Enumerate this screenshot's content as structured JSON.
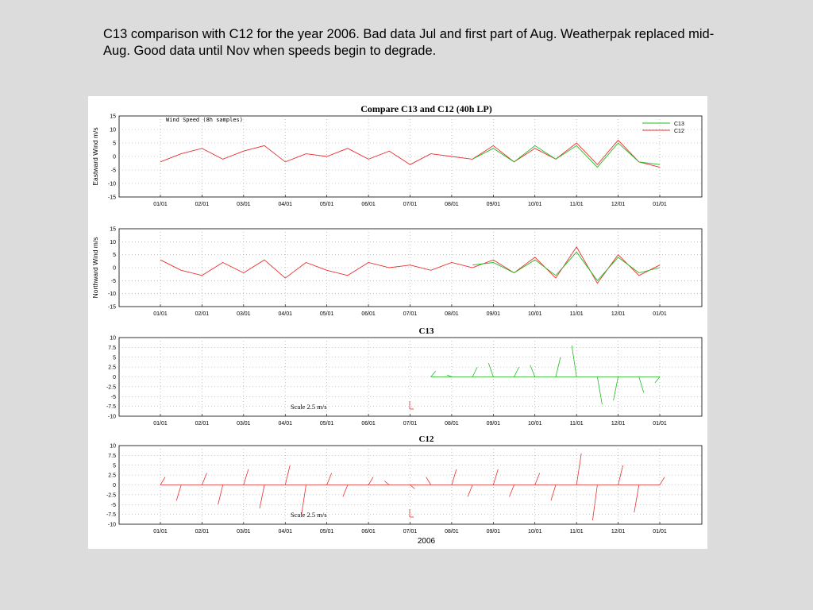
{
  "caption": "C13 comparison with C12 for the year 2006. Bad data Jul and first part of Aug. Weatherpak replaced mid-Aug. Good data until Nov when speeds begin to degrade.",
  "colors": {
    "C13": "#22bb22",
    "C12": "#e83030",
    "background": "#dcdcdc"
  },
  "chart_data": [
    {
      "type": "line",
      "title": "Compare C13 and C12 (40h LP)",
      "annotation": "Wind Speed (8h samples)",
      "ylabel": "Eastward Wind m/s",
      "ylim": [
        -15,
        15
      ],
      "yticks": [
        "15",
        "10",
        "5",
        "0",
        "-5",
        "-10",
        "-15"
      ],
      "xticks": [
        "01/01",
        "02/01",
        "03/01",
        "04/01",
        "05/01",
        "06/01",
        "07/01",
        "08/01",
        "09/01",
        "10/01",
        "11/01",
        "12/01",
        "01/01"
      ],
      "grid": true,
      "legend": "top-right",
      "x": [
        0,
        0.5,
        1,
        1.5,
        2,
        2.5,
        3,
        3.5,
        4,
        4.5,
        5,
        5.5,
        6,
        6.5,
        7,
        7.5,
        8,
        8.5,
        9,
        9.5,
        10,
        10.5,
        11,
        11.5,
        12
      ],
      "series": [
        {
          "name": "C12",
          "values": [
            -2,
            1,
            3,
            -1,
            2,
            4,
            -2,
            1,
            0,
            3,
            -1,
            2,
            -3,
            1,
            0,
            -1,
            4,
            -2,
            3,
            -1,
            5,
            -3,
            6,
            -2,
            -4
          ]
        },
        {
          "name": "C13",
          "values": [
            null,
            null,
            null,
            null,
            null,
            null,
            null,
            null,
            null,
            null,
            null,
            null,
            null,
            null,
            null,
            -1,
            3,
            -2,
            4,
            -1,
            4,
            -4,
            5,
            -2,
            -3
          ]
        }
      ]
    },
    {
      "type": "line",
      "title": "",
      "ylabel": "Northward Wind m/s",
      "ylim": [
        -15,
        15
      ],
      "yticks": [
        "15",
        "10",
        "5",
        "0",
        "-5",
        "-10",
        "-15"
      ],
      "xticks": [
        "01/01",
        "02/01",
        "03/01",
        "04/01",
        "05/01",
        "06/01",
        "07/01",
        "08/01",
        "09/01",
        "10/01",
        "11/01",
        "12/01",
        "01/01"
      ],
      "grid": true,
      "x": [
        0,
        0.5,
        1,
        1.5,
        2,
        2.5,
        3,
        3.5,
        4,
        4.5,
        5,
        5.5,
        6,
        6.5,
        7,
        7.5,
        8,
        8.5,
        9,
        9.5,
        10,
        10.5,
        11,
        11.5,
        12
      ],
      "series": [
        {
          "name": "C12",
          "values": [
            3,
            -1,
            -3,
            2,
            -2,
            3,
            -4,
            2,
            -1,
            -3,
            2,
            0,
            1,
            -1,
            2,
            0,
            3,
            -2,
            4,
            -4,
            8,
            -6,
            5,
            -3,
            1
          ]
        },
        {
          "name": "C13",
          "values": [
            null,
            null,
            null,
            null,
            null,
            null,
            null,
            null,
            null,
            null,
            null,
            null,
            null,
            null,
            null,
            1,
            2,
            -2,
            3,
            -3,
            6,
            -5,
            4,
            -2,
            0
          ]
        }
      ]
    },
    {
      "type": "line",
      "title": "C13",
      "ylim": [
        -10,
        10
      ],
      "yticks": [
        "10",
        "7.5",
        "5",
        "2.5",
        "0",
        "-2.5",
        "-5",
        "-7.5",
        "-10"
      ],
      "xticks": [
        "01/01",
        "02/01",
        "03/01",
        "04/01",
        "05/01",
        "06/01",
        "07/01",
        "08/01",
        "09/01",
        "10/01",
        "11/01",
        "12/01",
        "01/01"
      ],
      "grid": true,
      "scale_label": "Scale 2.5 m/s",
      "x": [
        6.5,
        7,
        7.5,
        8,
        8.5,
        9,
        9.5,
        10,
        10.5,
        11,
        11.5,
        12
      ],
      "series": [
        {
          "name": "C13 v",
          "values": [
            1.5,
            0.5,
            2.5,
            3.5,
            2.5,
            3,
            5,
            8,
            -7,
            -6,
            -4,
            -1.5
          ]
        }
      ]
    },
    {
      "type": "line",
      "title": "C12",
      "xlabel": "2006",
      "ylim": [
        -10,
        10
      ],
      "yticks": [
        "10",
        "7.5",
        "5",
        "2.5",
        "0",
        "-2.5",
        "-5",
        "-7.5",
        "-10"
      ],
      "xticks": [
        "01/01",
        "02/01",
        "03/01",
        "04/01",
        "05/01",
        "06/01",
        "07/01",
        "08/01",
        "09/01",
        "10/01",
        "11/01",
        "12/01",
        "01/01"
      ],
      "grid": true,
      "scale_label": "Scale 2.5 m/s",
      "x": [
        0,
        0.5,
        1,
        1.5,
        2,
        2.5,
        3,
        3.5,
        4,
        4.5,
        5,
        5.5,
        6,
        6.5,
        7,
        7.5,
        8,
        8.5,
        9,
        9.5,
        10,
        10.5,
        11,
        11.5,
        12
      ],
      "series": [
        {
          "name": "C12 v",
          "values": [
            2,
            -4,
            3,
            -5,
            4,
            -6,
            5,
            -8,
            3,
            -3,
            2,
            1,
            -1,
            2,
            4,
            -3,
            4,
            -3,
            3,
            -4,
            8,
            -9,
            5,
            -7,
            2
          ]
        }
      ]
    }
  ]
}
